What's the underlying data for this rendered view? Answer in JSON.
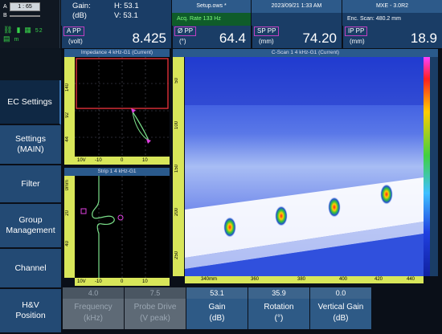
{
  "corner": {
    "a_label": "A",
    "a_value": "1 : 65",
    "b_label": "B",
    "icons": [
      "link-icon",
      "battery-icon",
      "grid-icon",
      "sd-card-icon"
    ],
    "icon_text_1": "52",
    "icon_text_2": "m"
  },
  "gain": {
    "label": "Gain:",
    "unit": "(dB)",
    "h": "H: 53.1",
    "v": "V: 53.1"
  },
  "setup": {
    "file": "Setup.ows *",
    "acq": "Acq. Rate 133 Hz"
  },
  "datetime": "2023/09/21 1:33 AM",
  "mxe": {
    "version": "MXE - 3.0R2",
    "scan": "Enc. Scan: 480.2 mm"
  },
  "readings": [
    {
      "label": "A PP",
      "unit": "(volt)",
      "value": "8.425"
    },
    {
      "label": "Ø PP",
      "unit": "(°)",
      "value": "64.4"
    },
    {
      "label": "SP PP",
      "unit": "(mm)",
      "value": "74.20"
    },
    {
      "label": "IP PP",
      "unit": "(mm)",
      "value": "18.9"
    }
  ],
  "menu": [
    {
      "label": "EC Settings",
      "active": true
    },
    {
      "label": "Settings\n(MAIN)",
      "active": false
    },
    {
      "label": "Filter",
      "active": false
    },
    {
      "label": "Group\nManagement",
      "active": false
    },
    {
      "label": "Channel",
      "active": false
    },
    {
      "label": "H&V\nPosition",
      "active": false
    }
  ],
  "impedance": {
    "title": "Impedance 4 kHz-G1 (Current)",
    "y_ticks": [
      "140",
      "92",
      "44"
    ],
    "x_ticks": [
      "10V",
      "-10",
      "0",
      "10"
    ]
  },
  "strip": {
    "title": "Strip 1 4 kHz-G1",
    "y_ticks": [
      "0mm",
      "20",
      "40"
    ],
    "x_ticks": [
      "10V",
      "-10",
      "0",
      "10"
    ]
  },
  "cscan": {
    "title": "C-Scan 1 4 kHz-G1 (Current)",
    "y_ticks": [
      "50",
      "100",
      "150",
      "200",
      "250"
    ],
    "x_ticks": [
      "340mm",
      "360",
      "380",
      "400",
      "420",
      "440"
    ]
  },
  "params": [
    {
      "value": "4.0",
      "name": "Frequency",
      "unit": "(kHz)",
      "state": "dim"
    },
    {
      "value": "7.5",
      "name": "Probe Drive",
      "unit": "(V peak)",
      "state": "dim"
    },
    {
      "value": "53.1",
      "name": "Gain",
      "unit": "(dB)",
      "state": "on"
    },
    {
      "value": "35.9",
      "name": "Rotation",
      "unit": "(°)",
      "state": "on"
    },
    {
      "value": "0.0",
      "name": "Vertical Gain",
      "unit": "(dB)",
      "state": "on"
    }
  ],
  "colors": {
    "panel_blue": "#1a3d66",
    "menu_blue": "#234a74",
    "accent_magenta": "#c040c0",
    "ruler_yellow": "#d8e65a",
    "trace_green": "#7be08a"
  }
}
